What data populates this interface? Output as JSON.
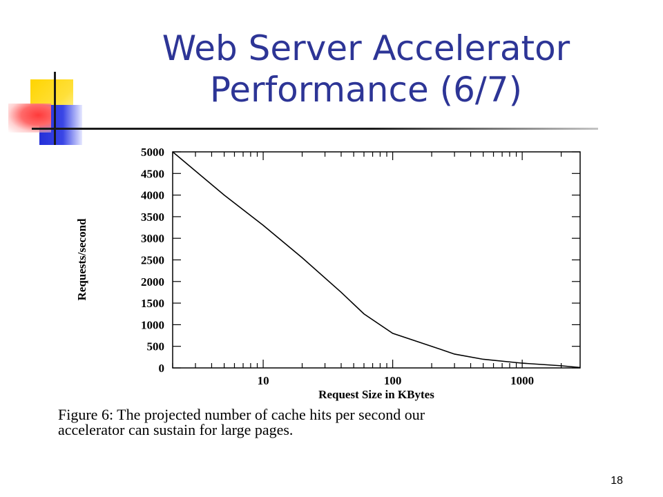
{
  "slide": {
    "title_line1": "Web Server Accelerator",
    "title_line2": "Performance (6/7)",
    "caption_line1": "Figure 6:  The projected number of cache hits per second our",
    "caption_line2": "accelerator can sustain for large pages.",
    "slide_number": "18",
    "title_color": "#2d3596"
  },
  "chart_data": {
    "type": "line",
    "title": "",
    "xlabel": "Request Size in KBytes",
    "ylabel": "Requests/second",
    "x_scale": "log",
    "xlim": [
      2,
      2800
    ],
    "ylim": [
      0,
      5000
    ],
    "x_ticks": [
      10,
      100,
      1000
    ],
    "x_tick_labels": [
      "10",
      "100",
      "1000"
    ],
    "y_ticks": [
      0,
      500,
      1000,
      1500,
      2000,
      2500,
      3000,
      3500,
      4000,
      4500,
      5000
    ],
    "y_tick_labels": [
      "0",
      "500",
      "1000",
      "1500",
      "2000",
      "2500",
      "3000",
      "3500",
      "4000",
      "4500",
      "5000"
    ],
    "grid": false,
    "series": [
      {
        "x": [
          2,
          5,
          10,
          20,
          40,
          60,
          100,
          200,
          300,
          500,
          1000,
          2000,
          2800
        ],
        "y": [
          5000,
          4000,
          3300,
          2550,
          1750,
          1250,
          800,
          500,
          320,
          200,
          110,
          50,
          10
        ]
      }
    ]
  }
}
